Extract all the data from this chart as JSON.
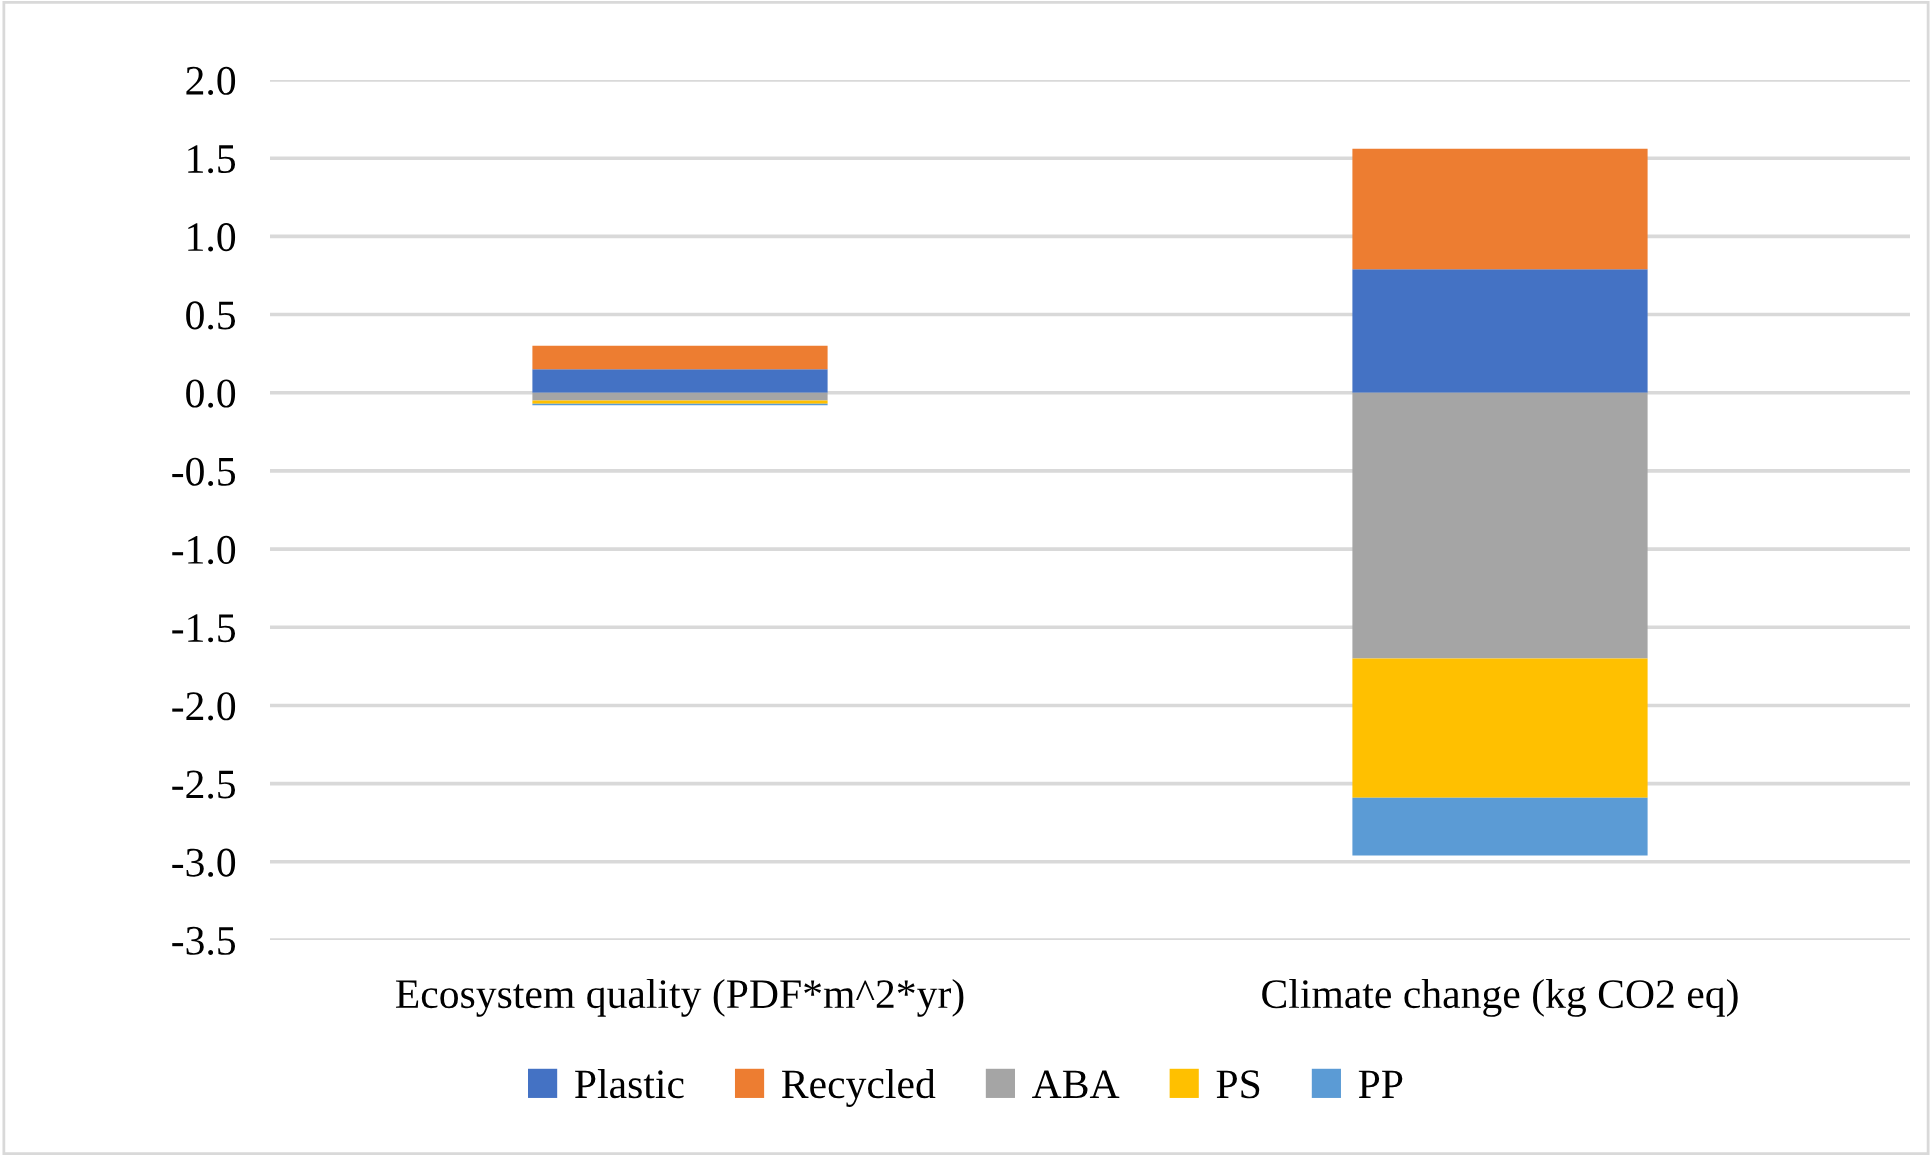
{
  "chart_data": {
    "type": "bar",
    "stacked": true,
    "categories": [
      "Ecosystem quality (PDF*m^2*yr)",
      "Climate change (kg CO2 eq)"
    ],
    "series": [
      {
        "name": "Plastic",
        "color": "#4472c4",
        "values": [
          0.15,
          0.79
        ]
      },
      {
        "name": "Recycled",
        "color": "#ed7d31",
        "values": [
          0.15,
          0.77
        ]
      },
      {
        "name": "ABA",
        "color": "#a5a5a5",
        "values": [
          -0.05,
          -1.7
        ]
      },
      {
        "name": "PS",
        "color": "#ffc000",
        "values": [
          -0.02,
          -0.89
        ]
      },
      {
        "name": "PP",
        "color": "#5b9bd5",
        "values": [
          -0.01,
          -0.37
        ]
      }
    ],
    "ylim": [
      -3.5,
      2.0
    ],
    "yticks": [
      {
        "value": -3.5,
        "label": "-3.5"
      },
      {
        "value": -3.0,
        "label": "-3.0"
      },
      {
        "value": -2.5,
        "label": "-2.5"
      },
      {
        "value": -2.0,
        "label": "-2.0"
      },
      {
        "value": -1.5,
        "label": "-1.5"
      },
      {
        "value": -1.0,
        "label": "-1.0"
      },
      {
        "value": -0.5,
        "label": "-0.5"
      },
      {
        "value": 0.0,
        "label": "0.0"
      },
      {
        "value": 0.5,
        "label": "0.5"
      },
      {
        "value": 1.0,
        "label": "1.0"
      },
      {
        "value": 1.5,
        "label": "1.5"
      },
      {
        "value": 2.0,
        "label": "2.0"
      }
    ],
    "grid": "y",
    "legend": "bottom"
  }
}
